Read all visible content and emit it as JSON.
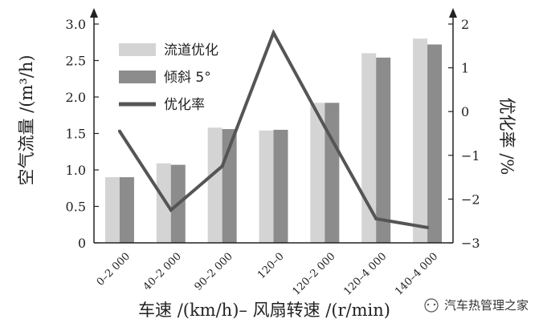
{
  "chart_data": {
    "type": "bar",
    "title": "",
    "categories": [
      "0–2 000",
      "40–2 000",
      "90–2 000",
      "120–0",
      "120–2 000",
      "120–4 000",
      "140–4 000"
    ],
    "series": [
      {
        "name": "流道优化",
        "type": "bar",
        "axis": "left",
        "color": "#d4d4d4",
        "values": [
          0.9,
          1.09,
          1.58,
          1.54,
          1.92,
          2.6,
          2.8
        ]
      },
      {
        "name": "倾斜 5°",
        "type": "bar",
        "axis": "left",
        "color": "#8c8c8c",
        "values": [
          0.9,
          1.07,
          1.56,
          1.55,
          1.92,
          2.54,
          2.72
        ]
      },
      {
        "name": "优化率",
        "type": "line",
        "axis": "right",
        "color": "#555555",
        "values": [
          -0.45,
          -2.25,
          -1.25,
          1.8,
          -0.35,
          -2.45,
          -2.65
        ]
      }
    ],
    "xlabel": "车速 /(km/h)– 风扇转速 /(r/min)",
    "ylabel_left": "空气流量 /(m³/h)",
    "ylabel_right": "优化率 /%",
    "ylim_left": [
      0,
      3.0
    ],
    "ylim_right": [
      -3,
      2
    ],
    "yticks_left": [
      "0",
      "0.5",
      "1.0",
      "1.5",
      "2.0",
      "2.5",
      "3.0"
    ],
    "yticks_right": [
      "−3",
      "−2",
      "−1",
      "0",
      "1",
      "2"
    ],
    "grid": false,
    "legend_position": "top-left"
  },
  "watermark": {
    "text": "汽车热管理之家"
  }
}
